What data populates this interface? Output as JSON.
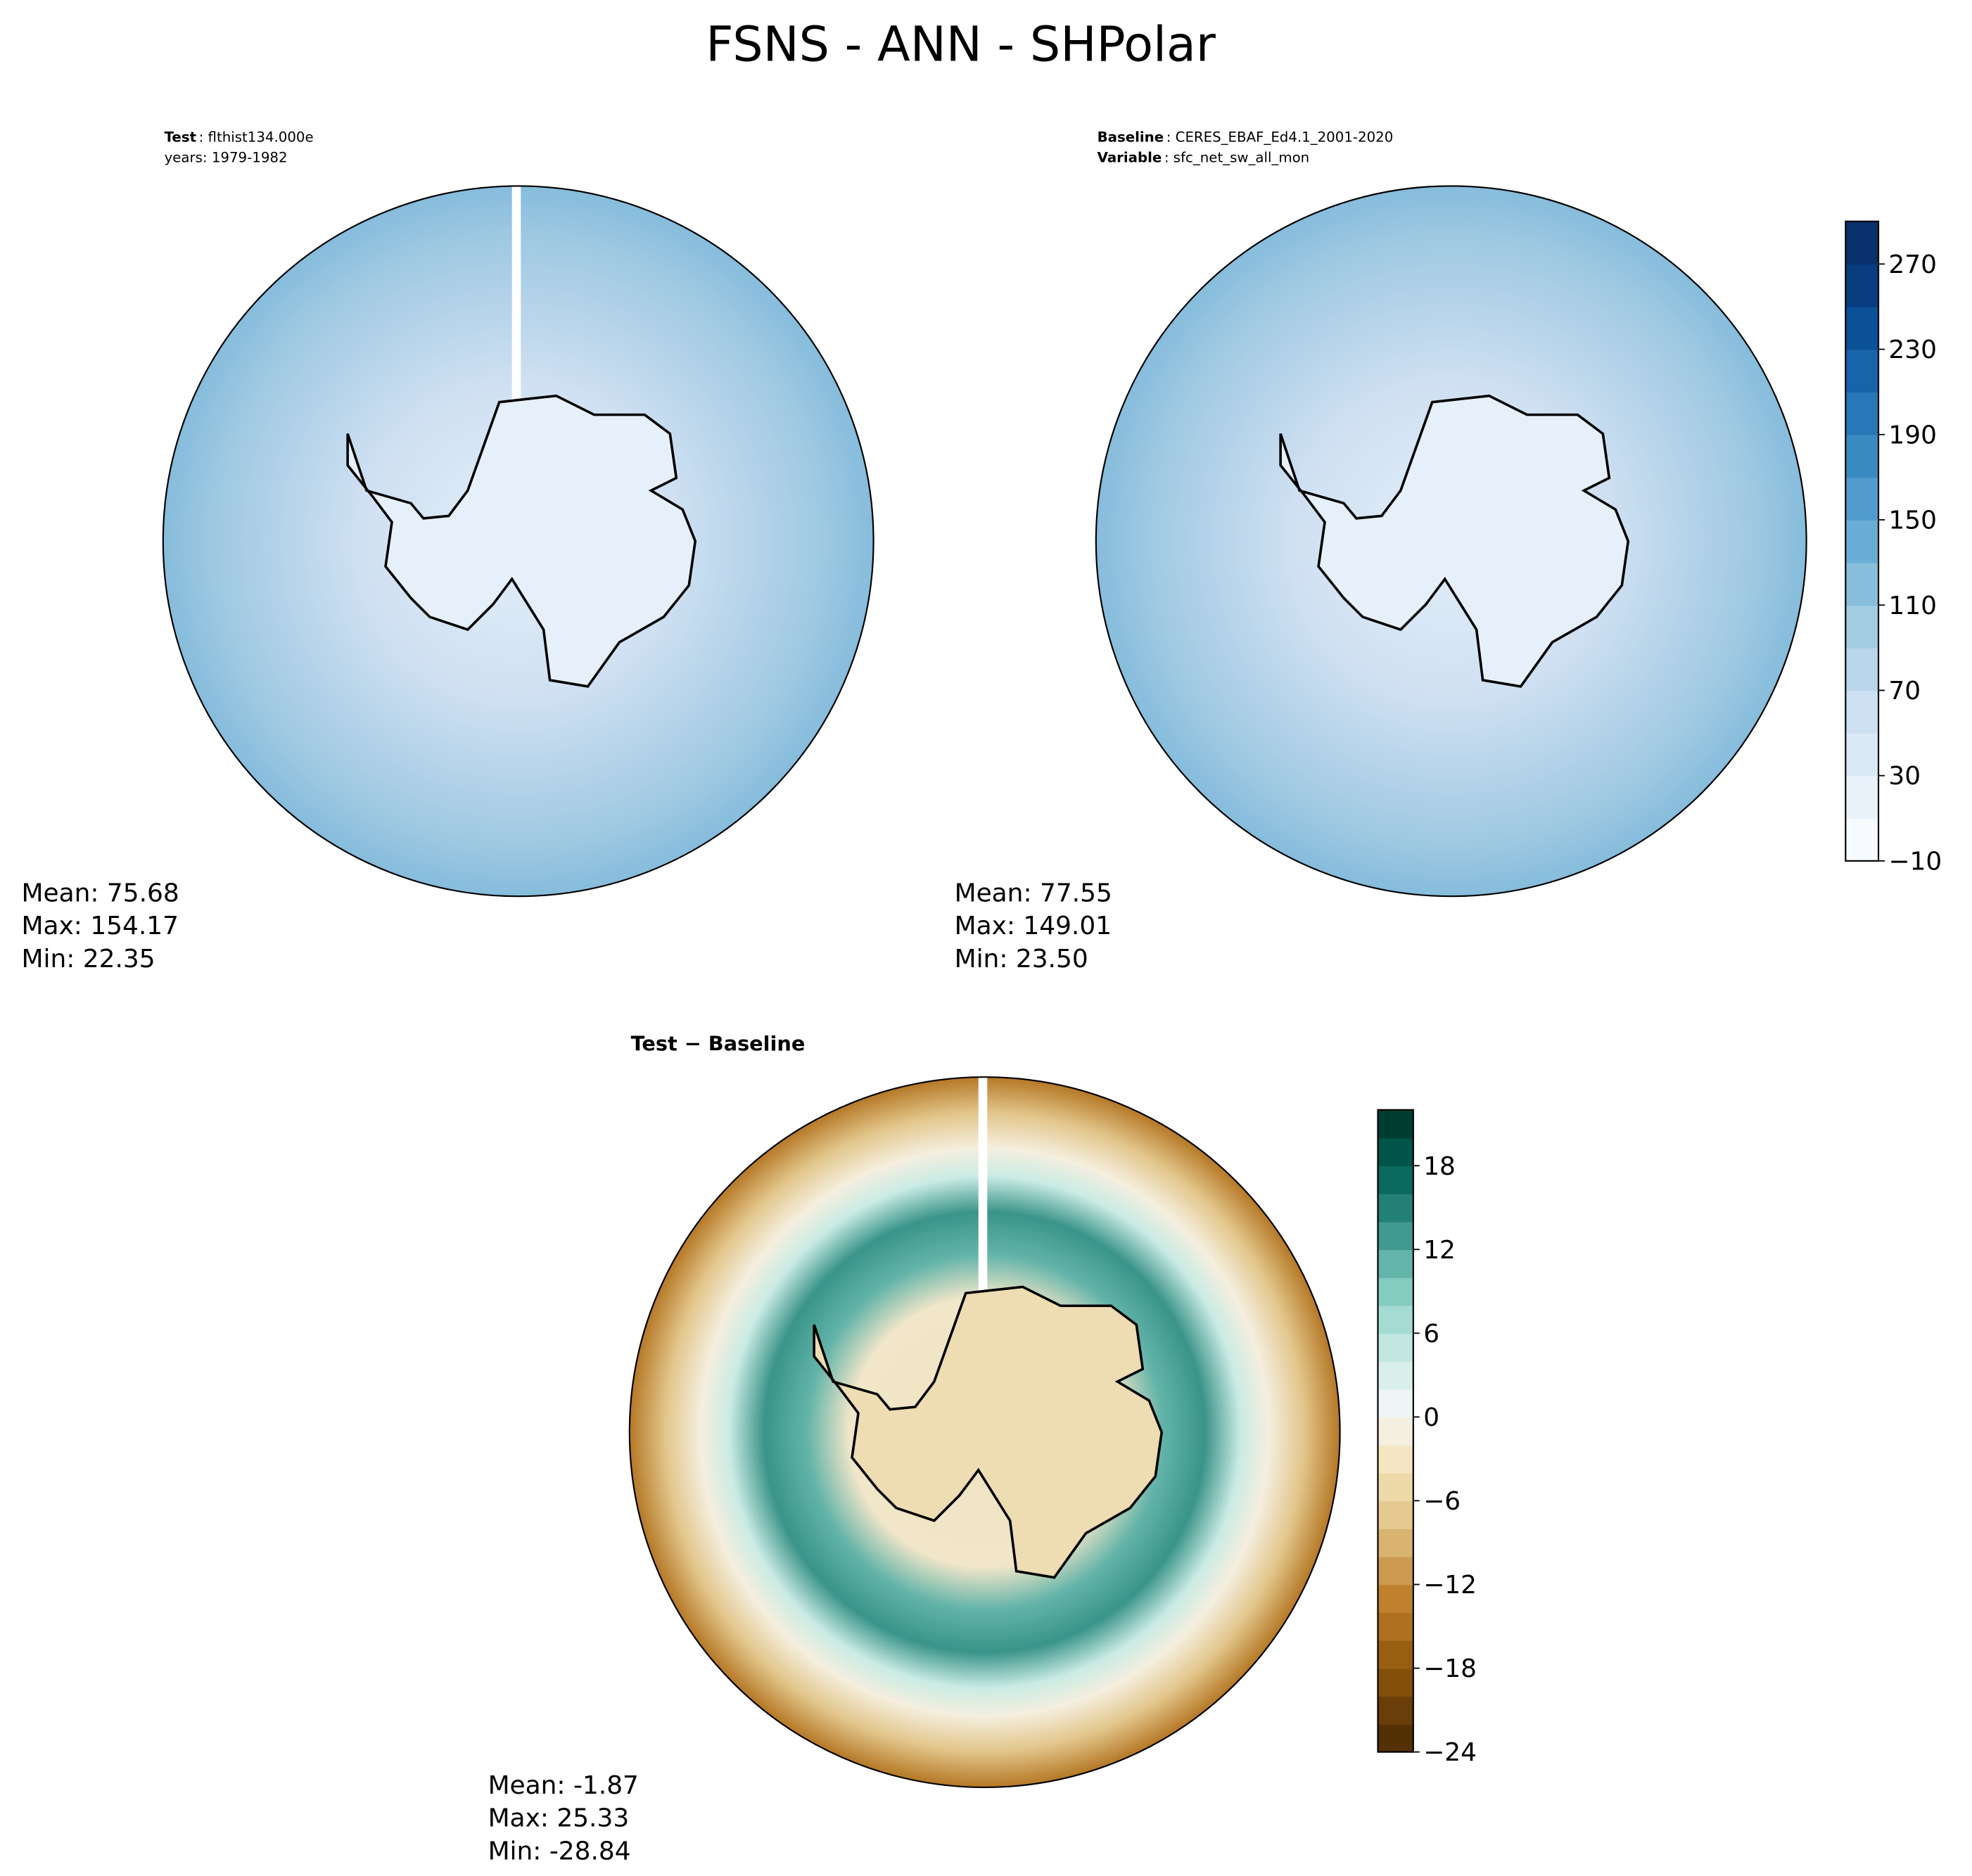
{
  "suptitle": "FSNS - ANN - SHPolar",
  "chart_data": [
    {
      "type": "map",
      "title_label": "Test",
      "title_text": ": flthist134.000e",
      "subtitle": "years: 1979-1982",
      "stats": [
        "Mean: 75.68",
        "Max: 154.17",
        "Min: 22.35"
      ],
      "palette": "blues"
    },
    {
      "type": "map",
      "title_label": "Baseline",
      "title_text": ": CERES_EBAF_Ed4.1_2001-2020",
      "subtitle_label": "Variable",
      "subtitle": ": sfc_net_sw_all_mon",
      "stats": [
        "Mean: 77.55",
        "Max: 149.01",
        "Min: 23.50"
      ],
      "palette": "blues",
      "colorbar": {
        "ylim": [
          -10,
          290
        ],
        "yticks": [
          {
            "value": -10,
            "label": "−10"
          },
          30,
          70,
          110,
          150,
          190,
          230,
          270
        ],
        "colors": [
          "#f7fbff",
          "#e9f2fa",
          "#dbe9f6",
          "#cde0f1",
          "#bad6eb",
          "#a3cce3",
          "#88bedc",
          "#6aaed6",
          "#519ccc",
          "#3a8ac2",
          "#2878b8",
          "#1864aa",
          "#0b5198",
          "#083e80",
          "#08306b"
        ]
      }
    },
    {
      "type": "map",
      "title_label": "Test − Baseline",
      "stats": [
        "Mean: -1.87",
        "Max: 25.33",
        "Min: -28.84"
      ],
      "palette": "diff",
      "colorbar": {
        "ylim": [
          -24,
          22
        ],
        "yticks": [
          {
            "value": -24,
            "label": "−24"
          },
          {
            "value": -18,
            "label": "−18"
          },
          {
            "value": -12,
            "label": "−12"
          },
          {
            "value": -6,
            "label": "−6"
          },
          0,
          6,
          12,
          18
        ],
        "colors": [
          "#543005",
          "#6b3d08",
          "#83500b",
          "#995f11",
          "#ad7021",
          "#bf812d",
          "#cc9b50",
          "#d9b370",
          "#e5c98e",
          "#eed9a9",
          "#f4e6c3",
          "#f5efdf",
          "#eef5f4",
          "#d9efeb",
          "#c1e7e0",
          "#a4dbd2",
          "#84cbc0",
          "#63b4a9",
          "#42998f",
          "#238077",
          "#0b6a60",
          "#015548",
          "#003c30"
        ]
      }
    }
  ]
}
